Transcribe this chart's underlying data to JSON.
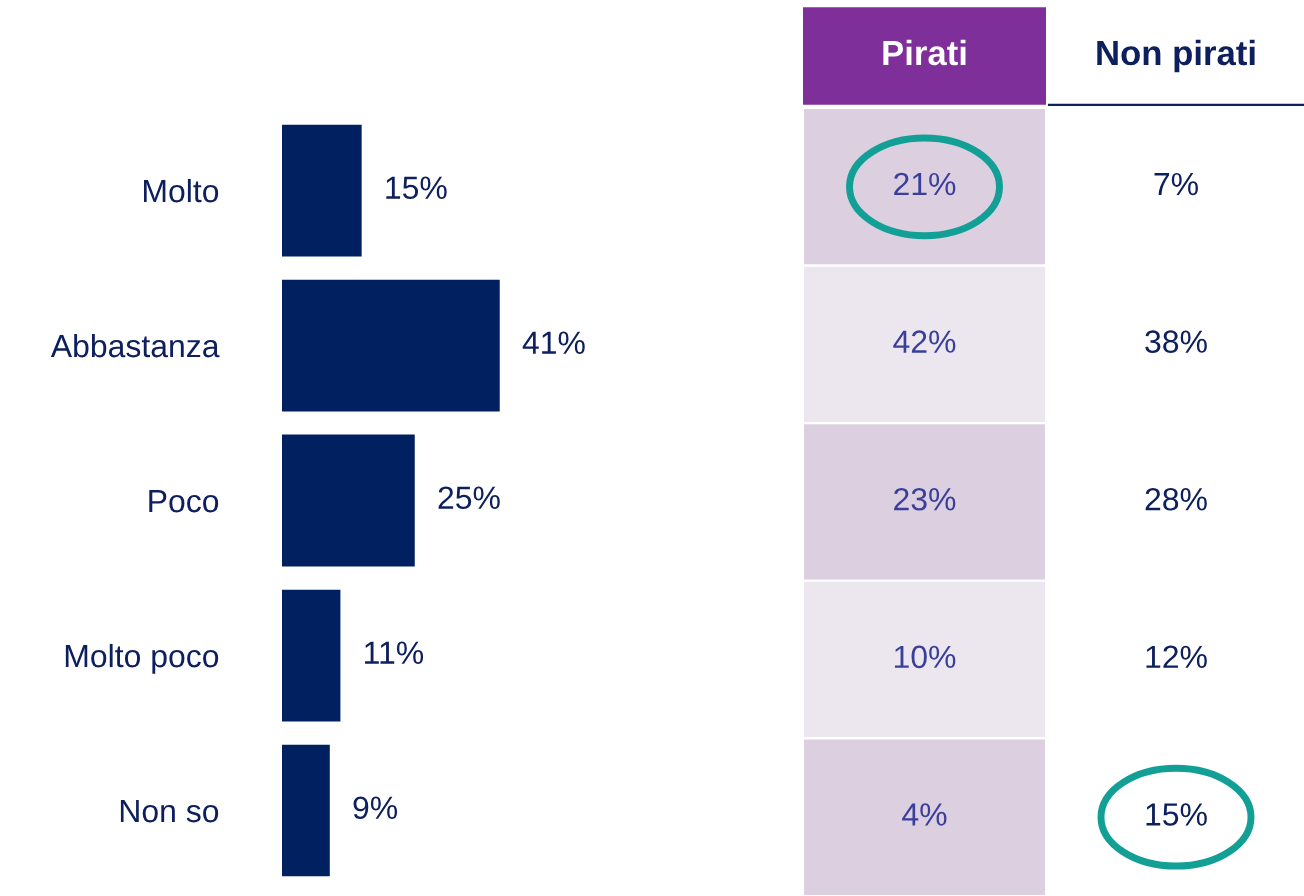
{
  "chart_data": [
    {
      "type": "bar",
      "orientation": "horizontal",
      "categories": [
        "Molto",
        "Abbastanza",
        "Poco",
        "Molto poco",
        "Non so"
      ],
      "values": [
        15,
        41,
        25,
        11,
        9
      ],
      "color": "#00205f",
      "tick_labels": "y",
      "data_labels": true,
      "value_labels": [
        "15%",
        "41%",
        "25%",
        "11%",
        "9%"
      ]
    },
    {
      "type": "other",
      "categories": [
        "Pirati",
        "Non pirati"
      ],
      "cell_labels": [
        [
          "21%",
          "7%"
        ],
        [
          "42%",
          "38%"
        ],
        [
          "23%",
          "28%"
        ],
        [
          "10%",
          "12%"
        ],
        [
          "4%",
          "15%"
        ]
      ]
    }
  ]
}
